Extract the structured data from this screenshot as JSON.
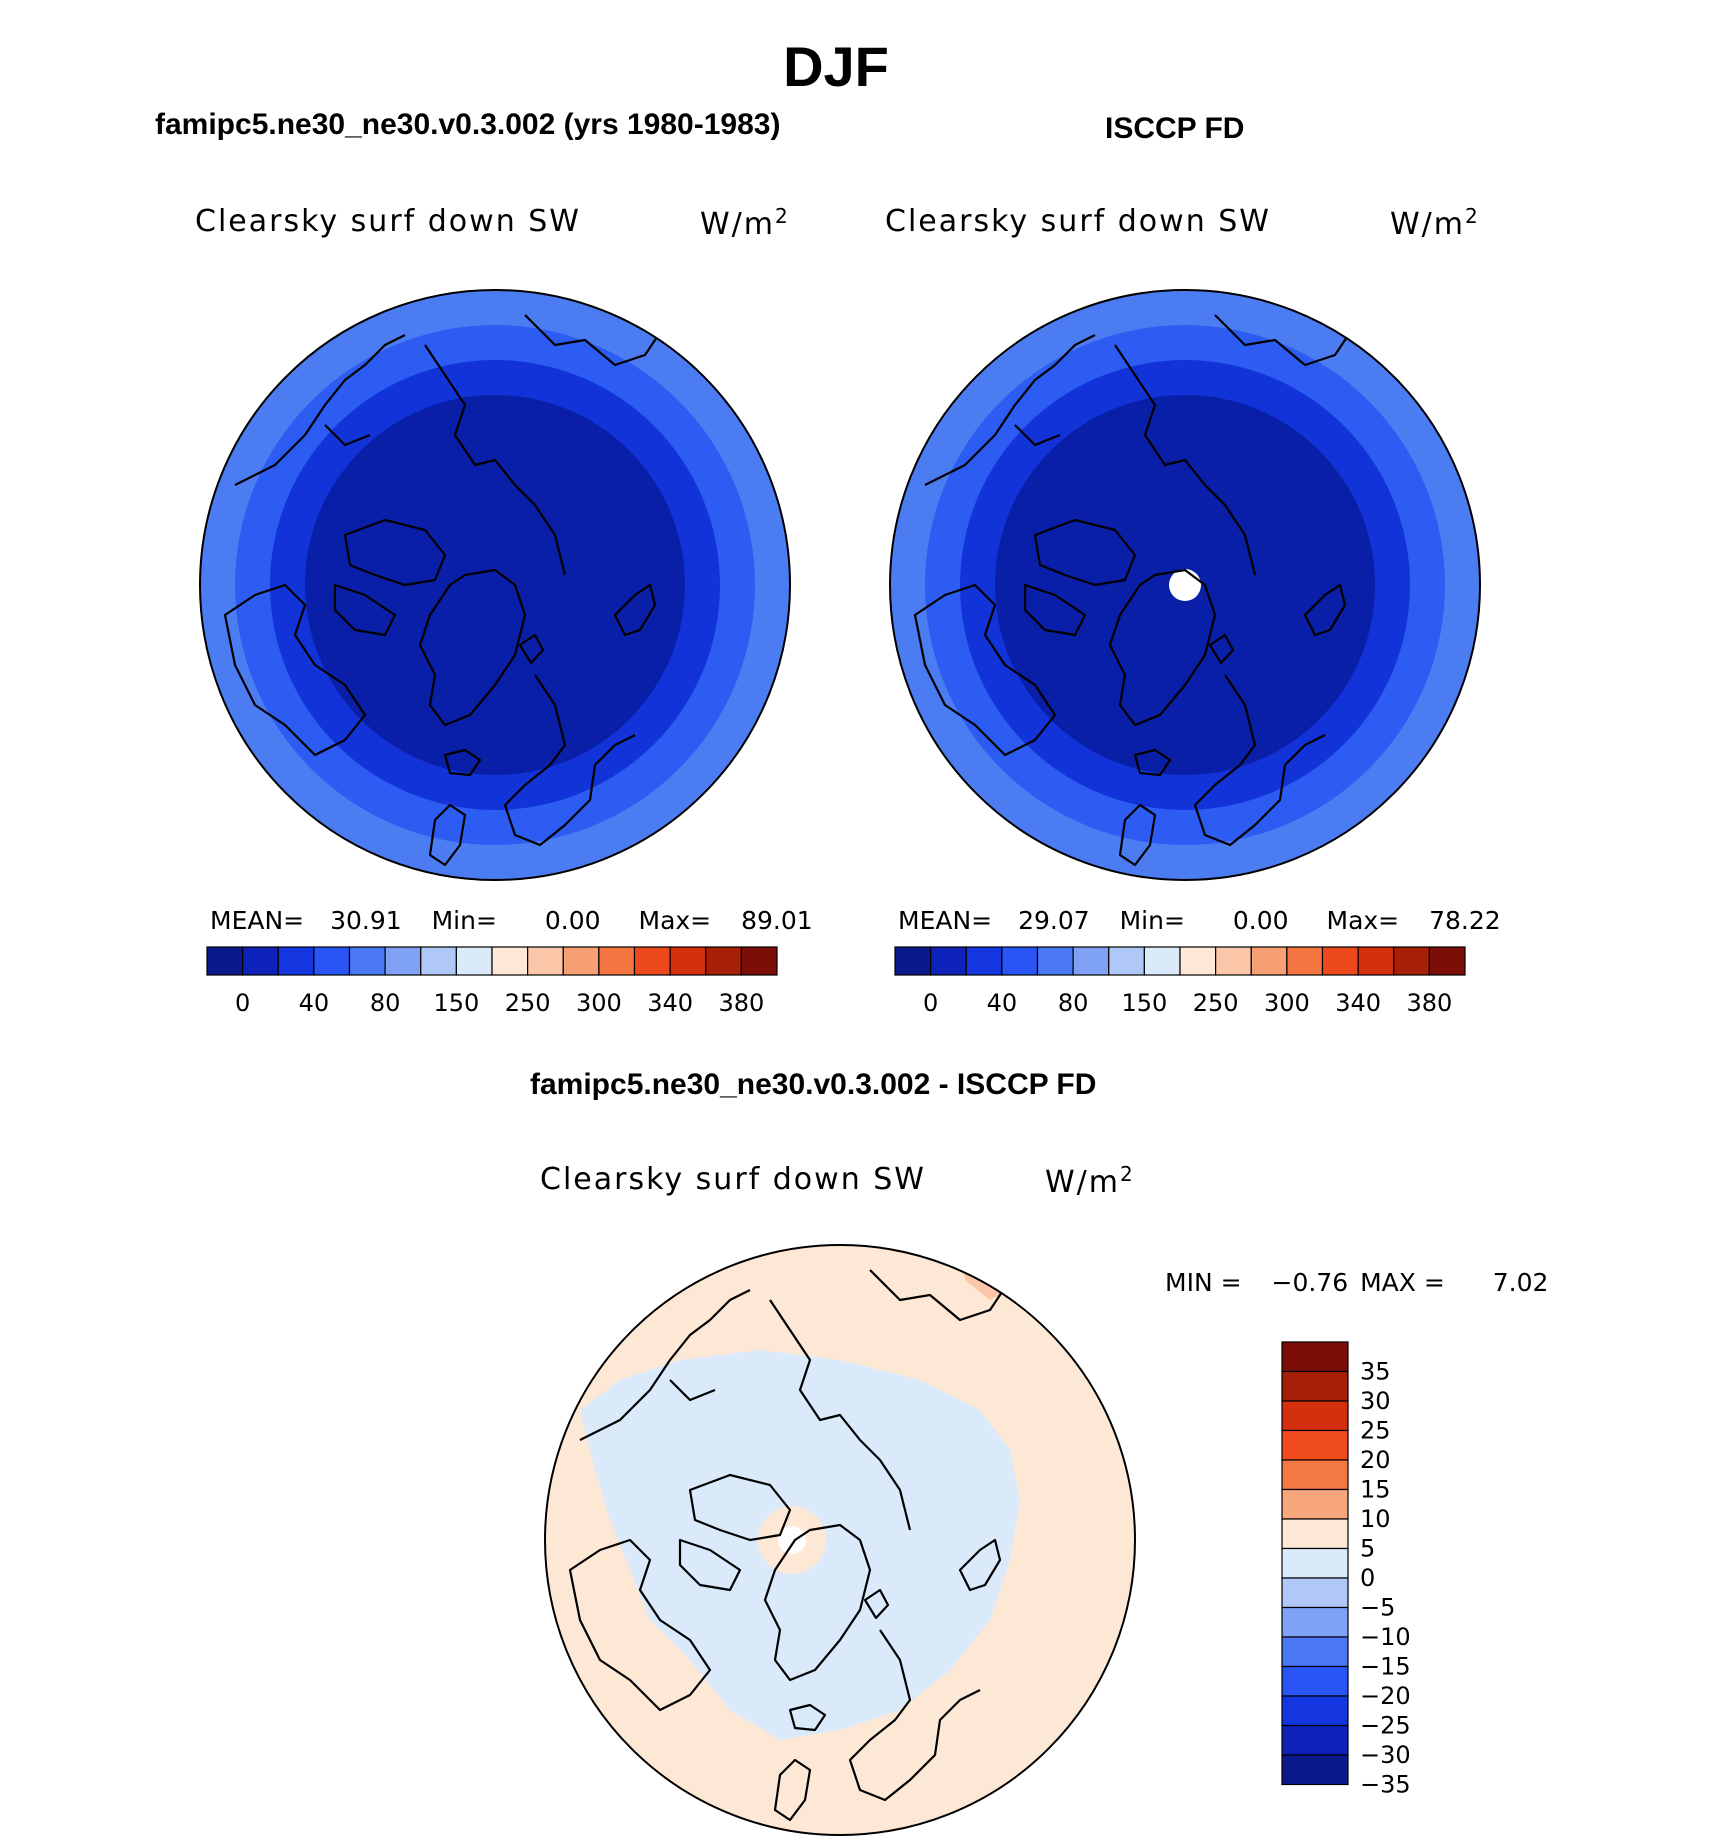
{
  "header": {
    "title": "DJF"
  },
  "panels": [
    {
      "title": "famipc5.ne30_ne30.v0.3.002 (yrs 1980-1983)",
      "label": "Clearsky surf down SW",
      "units_base": "W/m",
      "units_exp": "2",
      "stats": {
        "mean_label": "MEAN=",
        "mean": "30.91",
        "min_label": "Min=",
        "min": "0.00",
        "max_label": "Max=",
        "max": "89.01"
      },
      "rings": [
        "#4c7cf2",
        "#2c5cf2",
        "#1233d8",
        "#0a1fa8"
      ],
      "pole_hole": false
    },
    {
      "title": "ISCCP FD",
      "label": "Clearsky surf down SW",
      "units_base": "W/m",
      "units_exp": "2",
      "stats": {
        "mean_label": "MEAN=",
        "mean": "29.07",
        "min_label": "Min=",
        "min": "0.00",
        "max_label": "Max=",
        "max": "78.22"
      },
      "rings": [
        "#4c7cf2",
        "#2c5cf2",
        "#1233d8",
        "#0a1fa8"
      ],
      "pole_hole": true
    }
  ],
  "colorbar": {
    "colors": [
      "#0a1a8c",
      "#0c22b8",
      "#1436e0",
      "#2a55f5",
      "#4a78f5",
      "#7fa2f5",
      "#b0c8f8",
      "#daeafb",
      "#fde8d6",
      "#fbc7a8",
      "#f7a073",
      "#f47540",
      "#ec4a1d",
      "#d4300e",
      "#a81f08",
      "#7a0e06"
    ],
    "ticks": [
      "0",
      "40",
      "80",
      "150",
      "250",
      "300",
      "340",
      "380"
    ]
  },
  "diff_panel": {
    "title": "famipc5.ne30_ne30.v0.3.002 - ISCCP FD",
    "label": "Clearsky surf down SW",
    "units_base": "W/m",
    "units_exp": "2",
    "min_label": "MIN =",
    "min": "−0.76",
    "max_label": "MAX =",
    "max": "7.02",
    "colorbar": {
      "colors": [
        "#7a0e06",
        "#a81f08",
        "#d4300e",
        "#ef4b1c",
        "#f47844",
        "#f7a67c",
        "#fde8d6",
        "#daeafb",
        "#b0c8f8",
        "#7fa2f5",
        "#4a78f5",
        "#2a55f5",
        "#1436e0",
        "#0c22b8",
        "#0a1a8c"
      ],
      "ticks": [
        "35",
        "30",
        "25",
        "20",
        "15",
        "10",
        "5",
        "0",
        "−5",
        "−10",
        "−15",
        "−20",
        "−25",
        "−30",
        "−35"
      ]
    }
  }
}
